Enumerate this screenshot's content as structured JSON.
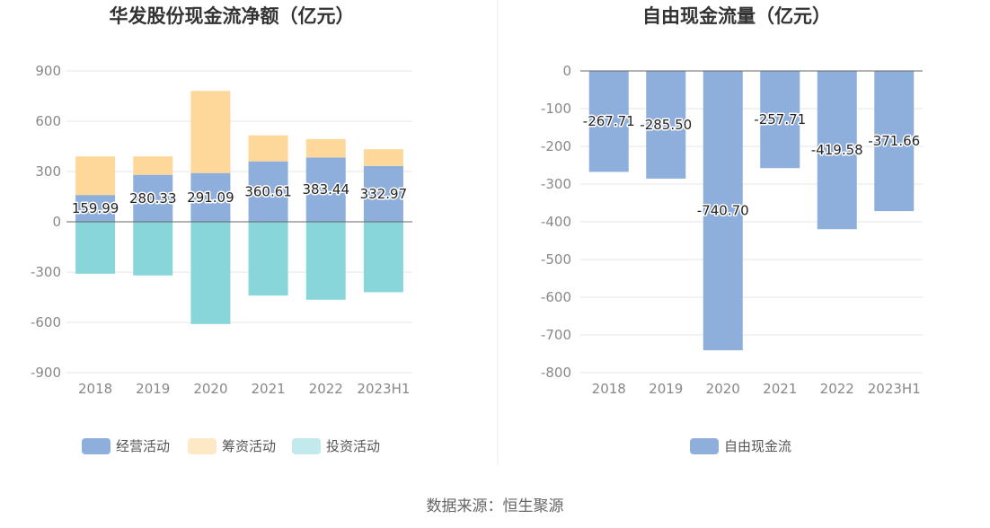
{
  "source_text": "数据来源：恒生聚源",
  "chart_data": [
    {
      "type": "bar",
      "stacked": true,
      "title": "华发股份现金流净额（亿元）",
      "categories": [
        "2018",
        "2019",
        "2020",
        "2021",
        "2022",
        "2023H1"
      ],
      "ylim": [
        -900,
        900
      ],
      "yticks": [
        900,
        600,
        300,
        0,
        -300,
        -600,
        -900
      ],
      "grid": true,
      "legend_position": "bottom",
      "series": [
        {
          "name": "经营活动",
          "color": "#8eaedc",
          "values": [
            159.99,
            280.33,
            291.09,
            360.61,
            383.44,
            332.97
          ],
          "labels": [
            "159.99",
            "280.33",
            "291.09",
            "360.61",
            "383.44",
            "332.97"
          ]
        },
        {
          "name": "筹资活动",
          "color": "#fdd89a",
          "legend_color": "#fde9c6",
          "values": [
            230,
            110,
            490,
            155,
            110,
            100
          ]
        },
        {
          "name": "投资活动",
          "color": "#88d6d9",
          "legend_color": "#c2eaec",
          "values": [
            -310,
            -320,
            -610,
            -440,
            -465,
            -420
          ]
        }
      ]
    },
    {
      "type": "bar",
      "title": "自由现金流量（亿元）",
      "categories": [
        "2018",
        "2019",
        "2020",
        "2021",
        "2022",
        "2023H1"
      ],
      "ylim": [
        -800,
        0
      ],
      "yticks": [
        0,
        -100,
        -200,
        -300,
        -400,
        -500,
        -600,
        -700,
        -800
      ],
      "grid": true,
      "legend_position": "bottom",
      "series": [
        {
          "name": "自由现金流",
          "color": "#8eaedc",
          "values": [
            -267.71,
            -285.5,
            -740.7,
            -257.71,
            -419.58,
            -371.66
          ],
          "labels": [
            "-267.71",
            "-285.50",
            "-740.70",
            "-257.71",
            "-419.58",
            "-371.66"
          ]
        }
      ]
    }
  ]
}
